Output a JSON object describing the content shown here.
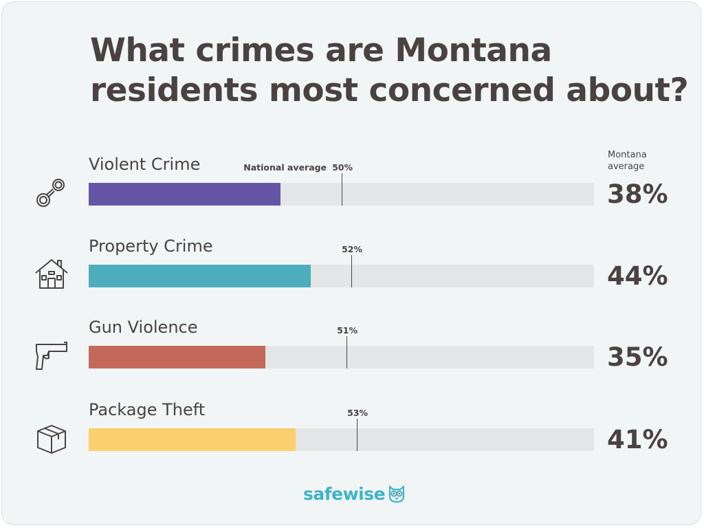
{
  "title_lines": [
    "What crimes are Montana",
    "residents most concerned about?"
  ],
  "state_avg_header": [
    "Montana",
    "average"
  ],
  "national_label": "National average",
  "logo_text": "safewise",
  "chart_data": {
    "type": "bar",
    "title": "What crimes are Montana residents most concerned about?",
    "xlim": [
      0,
      100
    ],
    "legend": "none",
    "grid": false,
    "categories": [
      "Violent Crime",
      "Property Crime",
      "Gun Violence",
      "Package Theft"
    ],
    "series": [
      {
        "name": "Montana average",
        "values": [
          38,
          44,
          35,
          41
        ]
      },
      {
        "name": "National average",
        "values": [
          50,
          52,
          51,
          53
        ]
      }
    ],
    "value_labels": [
      "38%",
      "44%",
      "35%",
      "41%"
    ],
    "national_labels": [
      "50%",
      "52%",
      "51%",
      "53%"
    ],
    "colors": [
      "#6655a7",
      "#4dadbd",
      "#c4695a",
      "#fbcf6d"
    ],
    "icons": [
      "handcuffs-icon",
      "house-icon",
      "handgun-icon",
      "package-box-icon"
    ]
  }
}
